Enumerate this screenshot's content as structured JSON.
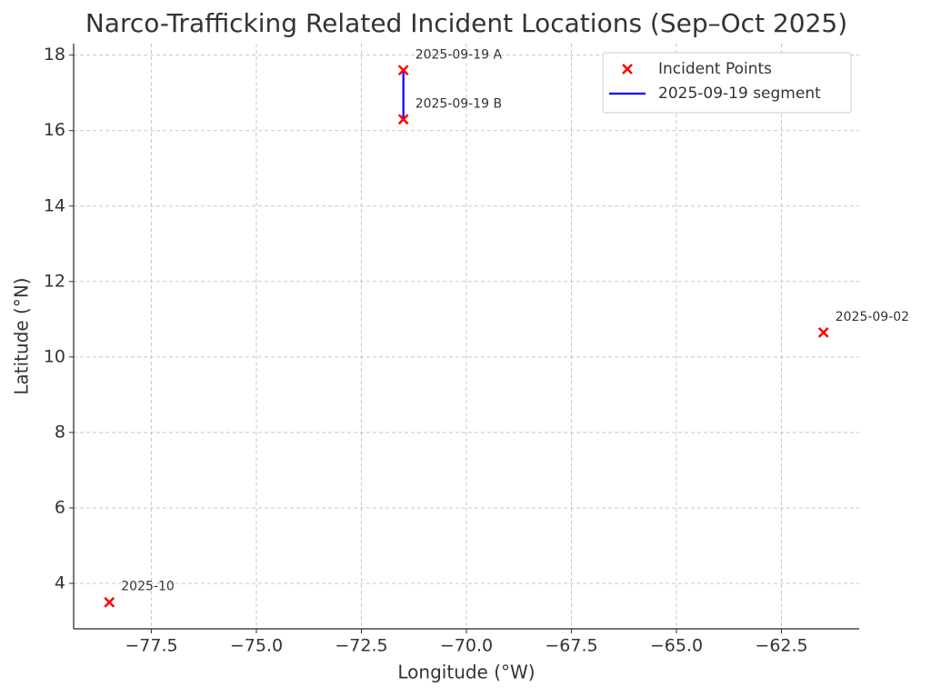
{
  "chart_data": {
    "type": "scatter",
    "title": "Narco-Trafficking Related Incident Locations (Sep–Oct 2025)",
    "x_label": "Longitude (°W)",
    "y_label": "Latitude (°N)",
    "series": [
      {
        "name": "Incident Points",
        "color": "#ff0000",
        "marker": "x",
        "x": [
          -78.5,
          -71.5,
          -71.5,
          -61.5
        ],
        "values": [
          3.5,
          17.6,
          16.3,
          10.65
        ],
        "labels": [
          "2025-10",
          "2025-09-19 A",
          "2025-09-19 B",
          "2025-09-02"
        ]
      },
      {
        "name": "2025-09-19 segment",
        "color": "#0000ff",
        "type": "line",
        "x": [
          -71.5,
          -71.5
        ],
        "values": [
          17.6,
          16.3
        ]
      }
    ],
    "xlim": [
      -79.35,
      -60.65
    ],
    "ylim": [
      2.795,
      18.305
    ],
    "xticks": [
      {
        "value": -77.5,
        "label": "−77.5"
      },
      {
        "value": -75,
        "label": "−75.0"
      },
      {
        "value": -72.5,
        "label": "−72.5"
      },
      {
        "value": -70,
        "label": "−70.0"
      },
      {
        "value": -67.5,
        "label": "−67.5"
      },
      {
        "value": -65,
        "label": "−65.0"
      },
      {
        "value": -62.5,
        "label": "−62.5"
      }
    ],
    "yticks": [
      4,
      6,
      8,
      10,
      12,
      14,
      16,
      18
    ],
    "grid": true,
    "legend": "upper right"
  }
}
